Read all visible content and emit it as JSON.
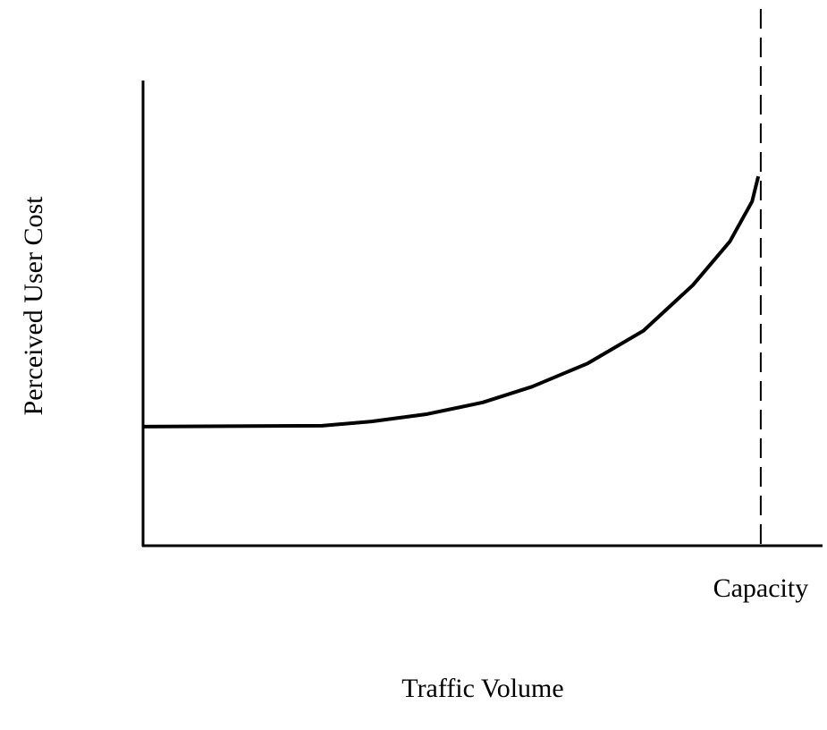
{
  "chart_data": {
    "type": "line",
    "xlabel": "Traffic Volume",
    "ylabel": "Perceived User Cost",
    "x": [
      0,
      29,
      37,
      46,
      55,
      63,
      72,
      81,
      89,
      95,
      98.6,
      99.6
    ],
    "series": [
      {
        "color": "#000000",
        "values": [
          25.6,
          25.8,
          26.7,
          28.3,
          30.8,
          34.2,
          39.2,
          46.2,
          56,
          65.4,
          74,
          79.4
        ]
      }
    ],
    "xlim": [
      0,
      110
    ],
    "ylim": [
      0,
      100
    ],
    "annotations": [
      {
        "text": "Capacity",
        "x": 100,
        "style": "dashed"
      }
    ]
  }
}
